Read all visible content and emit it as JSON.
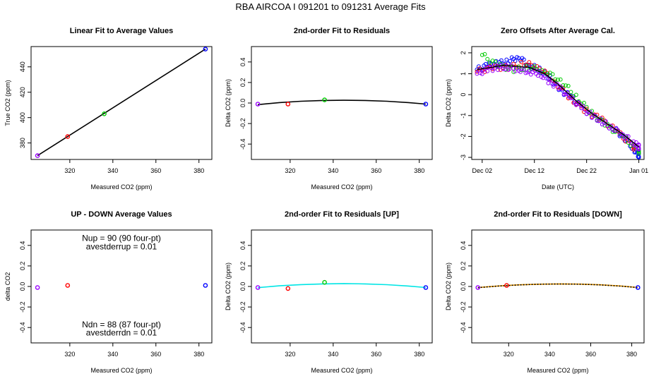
{
  "figure": {
    "title": "RBA   AIRCOA I   091201 to 091231   Average Fits"
  },
  "chart_data": [
    {
      "id": "p1",
      "type": "line",
      "title": "Linear Fit to Average Values",
      "xlabel": "Measured CO2 (ppm)",
      "ylabel": "True CO2 (ppm)",
      "xlim": [
        302,
        386
      ],
      "ylim": [
        367,
        456
      ],
      "xticks": [
        320,
        340,
        360,
        380
      ],
      "yticks": [
        380,
        400,
        420,
        440
      ],
      "points": [
        {
          "x": 305,
          "y": 370,
          "color": "#9900ff"
        },
        {
          "x": 319,
          "y": 385,
          "color": "#ff0000"
        },
        {
          "x": 336,
          "y": 403,
          "color": "#00cc00"
        },
        {
          "x": 383,
          "y": 454,
          "color": "#0000ff"
        }
      ],
      "lines": [
        {
          "x": [
            305,
            383
          ],
          "y": [
            370,
            454
          ],
          "color": "#000000"
        }
      ]
    },
    {
      "id": "p2",
      "type": "line",
      "title": "2nd-order Fit to Residuals",
      "xlabel": "Measured CO2 (ppm)",
      "ylabel": "Delta CO2 (ppm)",
      "xlim": [
        302,
        386
      ],
      "ylim": [
        -0.55,
        0.55
      ],
      "xticks": [
        320,
        340,
        360,
        380
      ],
      "yticks": [
        -0.4,
        -0.2,
        0.0,
        0.2,
        0.4
      ],
      "points": [
        {
          "x": 305,
          "y": -0.01,
          "color": "#9900ff"
        },
        {
          "x": 319,
          "y": -0.01,
          "color": "#ff0000"
        },
        {
          "x": 336,
          "y": 0.03,
          "color": "#00cc00"
        },
        {
          "x": 383,
          "y": -0.01,
          "color": "#0000ff"
        }
      ],
      "curves": [
        {
          "x": [
            305,
            315,
            325,
            335,
            345,
            355,
            365,
            375,
            383
          ],
          "y": [
            -0.016,
            0.004,
            0.017,
            0.025,
            0.027,
            0.025,
            0.017,
            0.004,
            -0.01
          ],
          "color": "#000000"
        }
      ]
    },
    {
      "id": "p3",
      "type": "scatter",
      "title": "Zero Offsets After Average Cal.",
      "xlabel": "Date (UTC)",
      "ylabel": "Delta CO2 (ppm)",
      "xlim": [
        "2009-11-30",
        "2010-01-02"
      ],
      "ylim": [
        -3.1,
        2.3
      ],
      "xticks": [
        "Dec 02",
        "Dec 12",
        "Dec 22",
        "Jan 01"
      ],
      "xtick_dates": [
        "2009-12-02",
        "2009-12-12",
        "2009-12-22",
        "2010-01-01"
      ],
      "yticks": [
        -3,
        -2,
        -1,
        0,
        1,
        2
      ],
      "series": [
        {
          "color": "#0000ff",
          "x": [
            "2009-12-01",
            "2009-12-03",
            "2009-12-05",
            "2009-12-07",
            "2009-12-09",
            "2009-12-11",
            "2009-12-13",
            "2009-12-15",
            "2009-12-17",
            "2009-12-19",
            "2009-12-21",
            "2009-12-23",
            "2009-12-25",
            "2009-12-27",
            "2009-12-29",
            "2009-12-31",
            "2010-01-01"
          ],
          "y": [
            1.2,
            1.4,
            1.5,
            1.6,
            1.8,
            1.4,
            1.2,
            0.8,
            0.2,
            -0.1,
            -0.6,
            -1.0,
            -1.3,
            -1.6,
            -2.0,
            -2.6,
            -2.9
          ]
        },
        {
          "color": "#ff0000",
          "x": [
            "2009-12-01",
            "2009-12-04",
            "2009-12-07",
            "2009-12-10",
            "2009-12-13",
            "2009-12-16",
            "2009-12-19",
            "2009-12-22",
            "2009-12-25",
            "2009-12-28",
            "2009-12-31"
          ],
          "y": [
            1.1,
            1.3,
            1.3,
            1.5,
            1.3,
            0.6,
            -0.2,
            -0.8,
            -1.2,
            -1.8,
            -2.5
          ]
        },
        {
          "color": "#00cc00",
          "x": [
            "2009-12-02",
            "2009-12-05",
            "2009-12-08",
            "2009-12-11",
            "2009-12-14",
            "2009-12-17",
            "2009-12-20",
            "2009-12-23",
            "2009-12-26",
            "2009-12-29",
            "2010-01-01"
          ],
          "y": [
            1.9,
            1.4,
            1.2,
            1.3,
            1.1,
            0.7,
            -0.1,
            -0.9,
            -1.5,
            -2.0,
            -2.7
          ]
        },
        {
          "color": "#9900ff",
          "x": [
            "2009-12-01",
            "2009-12-03",
            "2009-12-05",
            "2009-12-07",
            "2009-12-09",
            "2009-12-11",
            "2009-12-13",
            "2009-12-15",
            "2009-12-17",
            "2009-12-19",
            "2009-12-21",
            "2009-12-23",
            "2009-12-25",
            "2009-12-27",
            "2009-12-29",
            "2009-12-31",
            "2010-01-01"
          ],
          "y": [
            1.0,
            1.2,
            1.3,
            1.3,
            1.2,
            1.1,
            1.0,
            0.6,
            0.3,
            -0.2,
            -0.6,
            -1.0,
            -1.3,
            -1.6,
            -1.9,
            -2.3,
            -2.5
          ]
        }
      ],
      "trend": {
        "color": "#000000",
        "x": [
          "2009-12-01",
          "2009-12-06",
          "2009-12-11",
          "2009-12-14",
          "2009-12-17",
          "2009-12-20",
          "2009-12-23",
          "2009-12-26",
          "2009-12-29",
          "2010-01-01"
        ],
        "y": [
          1.2,
          1.4,
          1.3,
          1.0,
          0.4,
          -0.3,
          -0.9,
          -1.4,
          -1.9,
          -2.5
        ]
      }
    },
    {
      "id": "p4",
      "type": "scatter",
      "title": "UP - DOWN Average Values",
      "xlabel": "Measured CO2 (ppm)",
      "ylabel": "delta CO2",
      "xlim": [
        302,
        386
      ],
      "ylim": [
        -0.55,
        0.55
      ],
      "xticks": [
        320,
        340,
        360,
        380
      ],
      "yticks": [
        -0.4,
        -0.2,
        0.0,
        0.2,
        0.4
      ],
      "points": [
        {
          "x": 305,
          "y": -0.01,
          "color": "#9900ff"
        },
        {
          "x": 319,
          "y": 0.01,
          "color": "#ff0000"
        },
        {
          "x": 383,
          "y": 0.01,
          "color": "#0000ff"
        }
      ],
      "annotations": [
        {
          "text": "Nup = 90 (90 four-pt)",
          "x": 344,
          "y": 0.47
        },
        {
          "text": "avestderrup =  0.01",
          "x": 344,
          "y": 0.39
        },
        {
          "text": "Ndn = 88 (87 four-pt)",
          "x": 344,
          "y": -0.37
        },
        {
          "text": "avestderrdn =  0.01",
          "x": 344,
          "y": -0.45
        }
      ]
    },
    {
      "id": "p5",
      "type": "line",
      "title": "2nd-order Fit to Residuals [UP]",
      "xlabel": "Measured CO2 (ppm)",
      "ylabel": "Delta CO2 (ppm)",
      "xlim": [
        302,
        386
      ],
      "ylim": [
        -0.55,
        0.55
      ],
      "xticks": [
        320,
        340,
        360,
        380
      ],
      "yticks": [
        -0.4,
        -0.2,
        0.0,
        0.2,
        0.4
      ],
      "points": [
        {
          "x": 305,
          "y": -0.01,
          "color": "#9900ff"
        },
        {
          "x": 319,
          "y": -0.02,
          "color": "#ff0000"
        },
        {
          "x": 336,
          "y": 0.04,
          "color": "#00cc00"
        },
        {
          "x": 383,
          "y": -0.01,
          "color": "#0000ff"
        }
      ],
      "curves": [
        {
          "x": [
            305,
            315,
            325,
            335,
            345,
            355,
            365,
            375,
            383
          ],
          "y": [
            -0.012,
            0.006,
            0.018,
            0.025,
            0.028,
            0.025,
            0.017,
            0.004,
            -0.01
          ],
          "color": "#00e5e5"
        }
      ]
    },
    {
      "id": "p6",
      "type": "line",
      "title": "2nd-order Fit to Residuals [DOWN]",
      "xlabel": "Measured CO2 (ppm)",
      "ylabel": "Delta CO2 (ppm)",
      "xlim": [
        302,
        386
      ],
      "ylim": [
        -0.55,
        0.55
      ],
      "xticks": [
        320,
        340,
        360,
        380
      ],
      "yticks": [
        -0.4,
        -0.2,
        0.0,
        0.2,
        0.4
      ],
      "points": [
        {
          "x": 305,
          "y": -0.01,
          "color": "#9900ff"
        },
        {
          "x": 319,
          "y": 0.01,
          "color": "#ff0000"
        },
        {
          "x": 383,
          "y": -0.01,
          "color": "#0000ff"
        }
      ],
      "curves": [
        {
          "x": [
            305,
            315,
            325,
            335,
            345,
            355,
            365,
            375,
            383
          ],
          "y": [
            -0.01,
            0.005,
            0.016,
            0.022,
            0.025,
            0.023,
            0.016,
            0.004,
            -0.01
          ],
          "color": "#ffa500"
        },
        {
          "x": [
            305,
            315,
            325,
            335,
            345,
            355,
            365,
            375,
            383
          ],
          "y": [
            -0.012,
            0.004,
            0.015,
            0.022,
            0.024,
            0.022,
            0.015,
            0.003,
            -0.011
          ],
          "color": "#000000",
          "dashed": true
        }
      ]
    }
  ]
}
